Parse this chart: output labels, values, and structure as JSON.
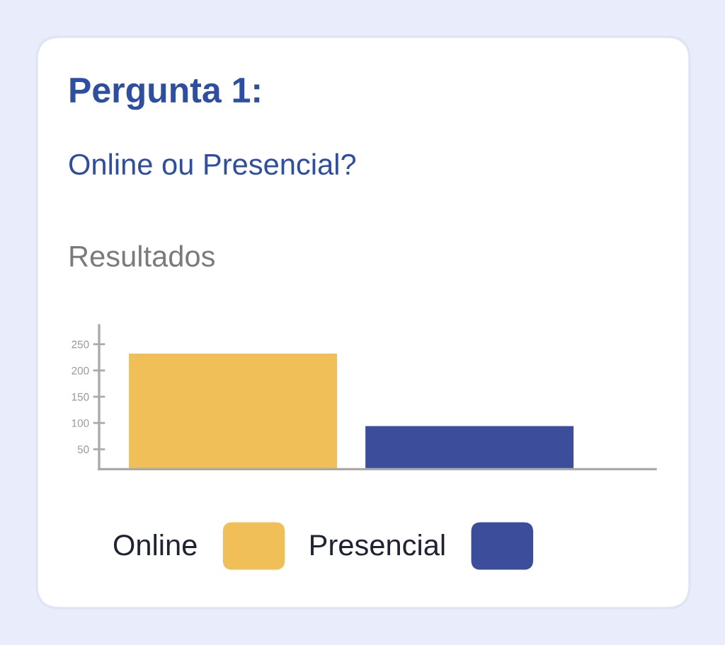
{
  "chart_data": {
    "type": "bar",
    "title": "Pergunta 1:",
    "subtitle": "Online ou Presencial?",
    "annotations": [
      "Resultados"
    ],
    "categories": [
      null,
      null
    ],
    "series": [
      {
        "name": "Online",
        "color": "#f0bf58",
        "values": [
          232,
          null
        ]
      },
      {
        "name": "Presencial",
        "color": "#3b4d9b",
        "values": [
          null,
          94
        ]
      }
    ],
    "ylim": [
      12,
      286
    ],
    "yticks": [
      50,
      100,
      150,
      200,
      250
    ],
    "grid": false,
    "legend": "bottom",
    "tick_labels": "y"
  }
}
